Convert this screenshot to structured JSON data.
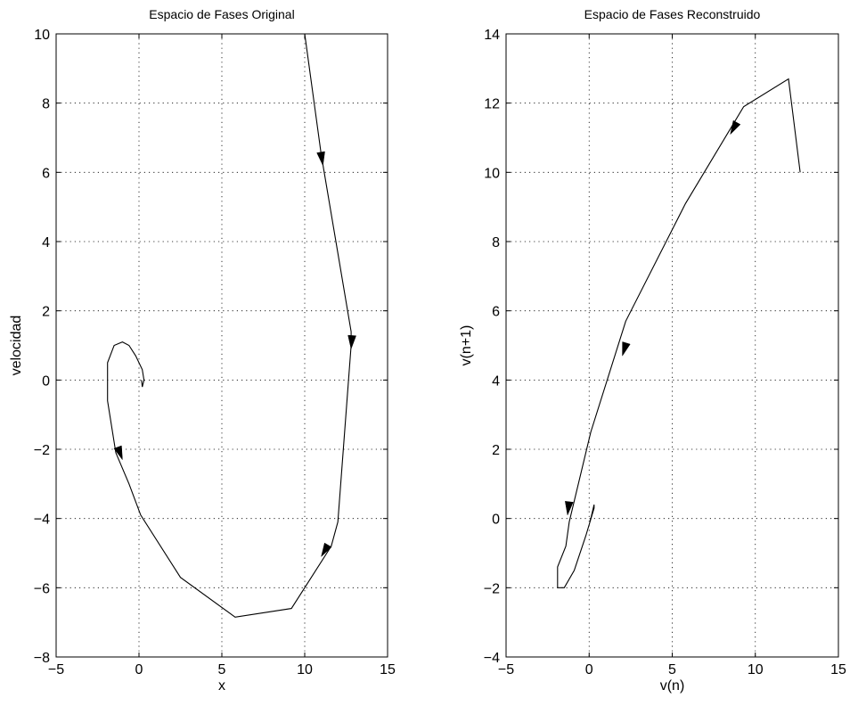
{
  "figure": {
    "background": "#ffffff",
    "line_color": "#000000"
  },
  "chart_data": [
    {
      "type": "line",
      "title": "Espacio de Fases  Original",
      "xlabel": "x",
      "ylabel": "velocidad",
      "xlim": [
        -5,
        15
      ],
      "ylim": [
        -8,
        10
      ],
      "xticks": [
        -5,
        0,
        5,
        10,
        15
      ],
      "yticks": [
        -8,
        -6,
        -4,
        -2,
        0,
        2,
        4,
        6,
        8,
        10
      ],
      "grid": true,
      "series": [
        {
          "points": [
            [
              10.0,
              10.0
            ],
            [
              11.0,
              6.5
            ],
            [
              12.8,
              1.4
            ],
            [
              12.8,
              1.0
            ],
            [
              12.0,
              -4.1
            ],
            [
              11.6,
              -4.8
            ],
            [
              9.2,
              -6.6
            ],
            [
              5.8,
              -6.85
            ],
            [
              2.5,
              -5.7
            ],
            [
              0.1,
              -3.9
            ],
            [
              -0.6,
              -3.0
            ],
            [
              -1.4,
              -2.1
            ],
            [
              -1.9,
              -0.6
            ],
            [
              -1.9,
              0.5
            ],
            [
              -1.5,
              1.0
            ],
            [
              -1.0,
              1.1
            ],
            [
              -0.6,
              1.0
            ],
            [
              -0.2,
              0.7
            ],
            [
              0.2,
              0.3
            ],
            [
              0.3,
              0.0
            ],
            [
              0.2,
              -0.2
            ],
            [
              0.15,
              0.0
            ]
          ]
        }
      ],
      "arrows": [
        {
          "at": [
            11.1,
            6.2
          ],
          "toward": [
            11.6,
            4.7
          ]
        },
        {
          "at": [
            12.8,
            0.9
          ],
          "toward": [
            12.7,
            0.2
          ]
        },
        {
          "at": [
            11.0,
            -5.1
          ],
          "toward": [
            9.9,
            -6.0
          ]
        },
        {
          "at": [
            -1.0,
            -2.3
          ],
          "toward": [
            -0.3,
            -3.2
          ]
        }
      ]
    },
    {
      "type": "line",
      "title": "Espacio de Fases Reconstruido",
      "xlabel": "v(n)",
      "ylabel": "v(n+1)",
      "xlim": [
        -5,
        15
      ],
      "ylim": [
        -4,
        14
      ],
      "xticks": [
        -5,
        0,
        5,
        10,
        15
      ],
      "yticks": [
        -4,
        -2,
        0,
        2,
        4,
        6,
        8,
        10,
        12,
        14
      ],
      "grid": true,
      "series": [
        {
          "points": [
            [
              12.7,
              10.0
            ],
            [
              12.0,
              12.7
            ],
            [
              9.3,
              11.9
            ],
            [
              5.8,
              9.1
            ],
            [
              2.2,
              5.7
            ],
            [
              0.1,
              2.5
            ],
            [
              -1.2,
              -0.1
            ],
            [
              -1.4,
              -0.8
            ],
            [
              -1.9,
              -1.4
            ],
            [
              -1.9,
              -2.0
            ],
            [
              -1.5,
              -2.0
            ],
            [
              -0.9,
              -1.5
            ],
            [
              -0.2,
              -0.5
            ],
            [
              0.3,
              0.3
            ],
            [
              0.3,
              0.4
            ],
            [
              0.1,
              0.0
            ],
            [
              0.05,
              -0.05
            ]
          ]
        }
      ],
      "arrows": [
        {
          "at": [
            8.5,
            11.1
          ],
          "toward": [
            7.7,
            10.4
          ]
        },
        {
          "at": [
            2.0,
            4.7
          ],
          "toward": [
            1.3,
            3.6
          ]
        },
        {
          "at": [
            -1.3,
            0.1
          ],
          "toward": [
            -1.5,
            -0.7
          ]
        }
      ]
    }
  ]
}
